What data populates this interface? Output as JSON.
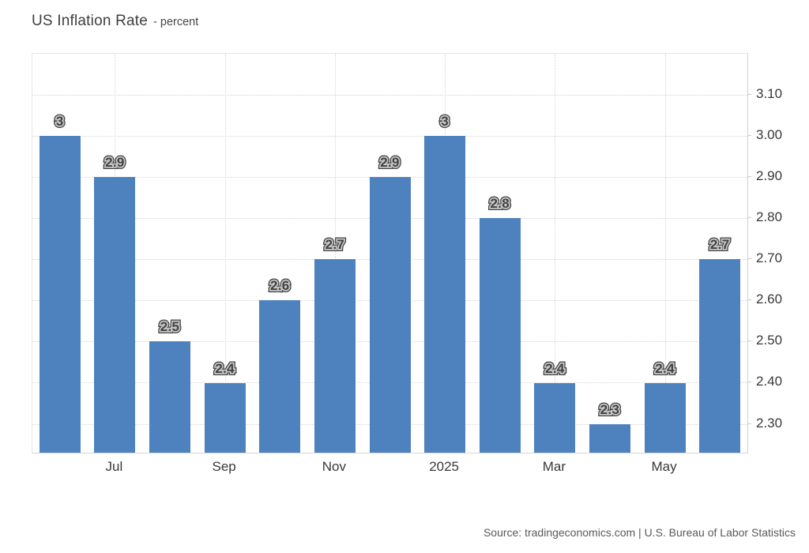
{
  "title": {
    "main": "US Inflation Rate",
    "sub": "- percent"
  },
  "source": "Source: tradingeconomics.com | U.S. Bureau of Labor Statistics",
  "chart_data": {
    "type": "bar",
    "title": "US Inflation Rate - percent",
    "xlabel": "",
    "ylabel": "percent",
    "values": [
      3,
      2.9,
      2.5,
      2.4,
      2.6,
      2.7,
      2.9,
      3,
      2.8,
      2.4,
      2.3,
      2.4,
      2.7
    ],
    "bar_value_labels": [
      "3",
      "2.9",
      "2.5",
      "2.4",
      "2.6",
      "2.7",
      "2.9",
      "3",
      "2.8",
      "2.4",
      "2.3",
      "2.4",
      "2.7"
    ],
    "x_ticks": [
      {
        "bar_index": 1,
        "label": "Jul"
      },
      {
        "bar_index": 3,
        "label": "Sep"
      },
      {
        "bar_index": 5,
        "label": "Nov"
      },
      {
        "bar_index": 7,
        "label": "2025"
      },
      {
        "bar_index": 9,
        "label": "Mar"
      },
      {
        "bar_index": 11,
        "label": "May"
      }
    ],
    "y_ticks": [
      {
        "value": 3.1,
        "label": "3.10"
      },
      {
        "value": 3.0,
        "label": "3.00"
      },
      {
        "value": 2.9,
        "label": "2.90"
      },
      {
        "value": 2.8,
        "label": "2.80"
      },
      {
        "value": 2.7,
        "label": "2.70"
      },
      {
        "value": 2.6,
        "label": "2.60"
      },
      {
        "value": 2.5,
        "label": "2.50"
      },
      {
        "value": 2.4,
        "label": "2.40"
      },
      {
        "value": 2.3,
        "label": "2.30"
      }
    ],
    "ylim": [
      2.23,
      3.2
    ],
    "grid": "dotted",
    "legend": "none",
    "y_axis_position": "right",
    "bar_color": "#4e82be"
  }
}
